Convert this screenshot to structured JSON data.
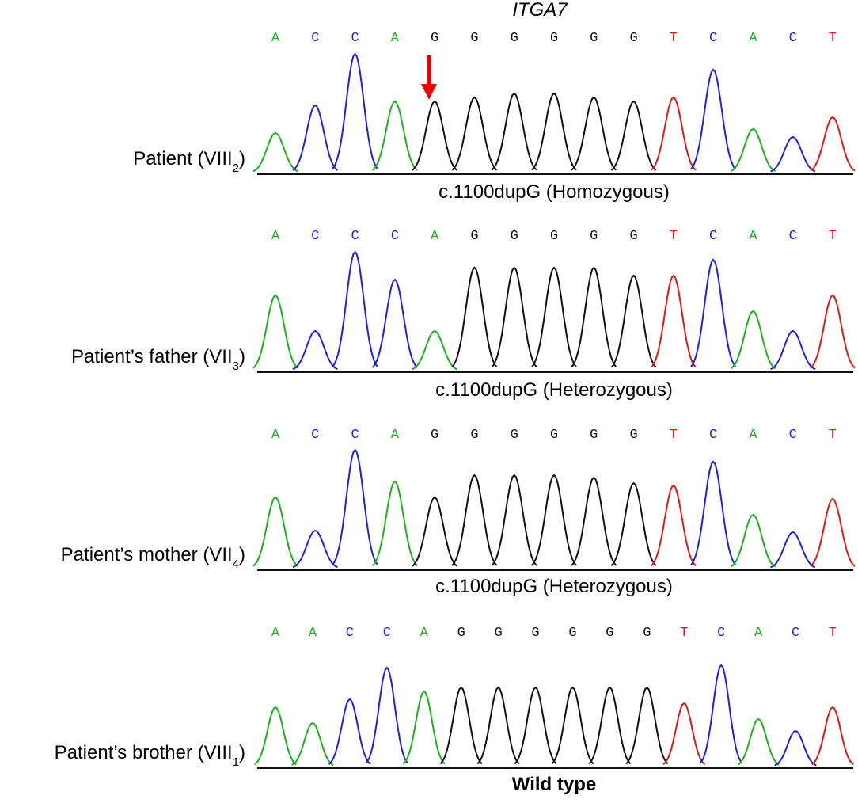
{
  "gene": "ITGA7",
  "panels": [
    {
      "label": "Patient (VIII",
      "subscript": "2",
      "suffix": ")",
      "bases": [
        "A",
        "C",
        "C",
        "A",
        "G",
        "G",
        "G",
        "G",
        "G",
        "G",
        "T",
        "C",
        "A",
        "C",
        "T"
      ],
      "caption": "c.1100dupG (Homozygous)"
    },
    {
      "label": "Patient’s father (VII",
      "subscript": "3",
      "suffix": ")",
      "bases": [
        "A",
        "C",
        "C",
        "C",
        "A",
        "G",
        "G",
        "G",
        "G",
        "G",
        "T",
        "C",
        "A",
        "C",
        "T"
      ],
      "caption": "c.1100dupG (Heterozygous)"
    },
    {
      "label": "Patient’s mother (VII",
      "subscript": "4",
      "suffix": ")",
      "bases": [
        "A",
        "C",
        "C",
        "A",
        "G",
        "G",
        "G",
        "G",
        "G",
        "G",
        "T",
        "C",
        "A",
        "C",
        "T"
      ],
      "caption": "c.1100dupG (Heterozygous)"
    },
    {
      "label": "Patient’s brother (VIII",
      "subscript": "1",
      "suffix": ")",
      "bases": [
        "A",
        "A",
        "C",
        "C",
        "A",
        "G",
        "G",
        "G",
        "G",
        "G",
        "G",
        "T",
        "C",
        "A",
        "C",
        "T"
      ],
      "caption": "Wild type"
    }
  ]
}
